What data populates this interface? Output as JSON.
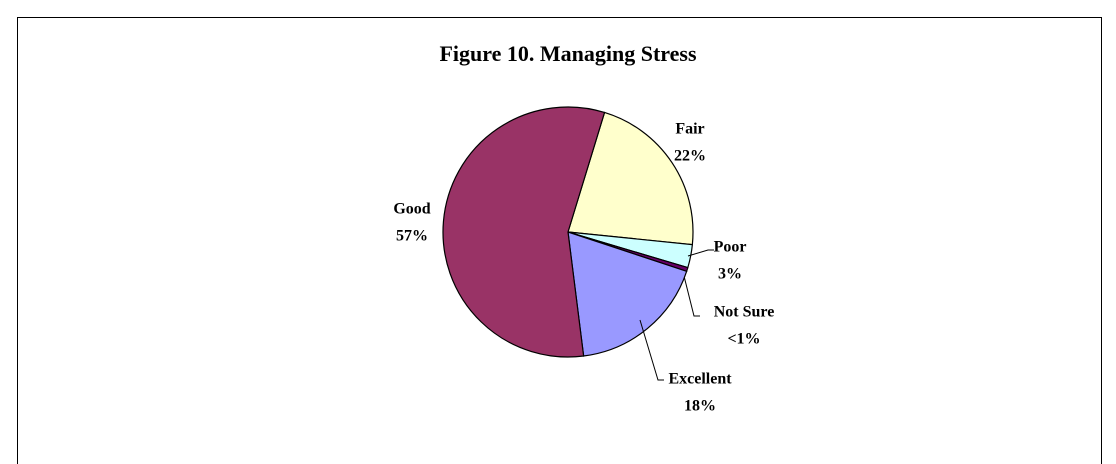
{
  "chart_data": {
    "type": "pie",
    "title": "Figure 10. Managing Stress",
    "categories": [
      "Fair",
      "Poor",
      "Not Sure",
      "Excellent",
      "Good"
    ],
    "values": [
      22,
      3,
      0.5,
      18,
      57
    ],
    "value_labels": [
      "22%",
      "3%",
      "<1%",
      "18%",
      "57%"
    ],
    "colors": [
      "#FFFFCC",
      "#CCFFFF",
      "#660066",
      "#9999FF",
      "#993366"
    ]
  }
}
